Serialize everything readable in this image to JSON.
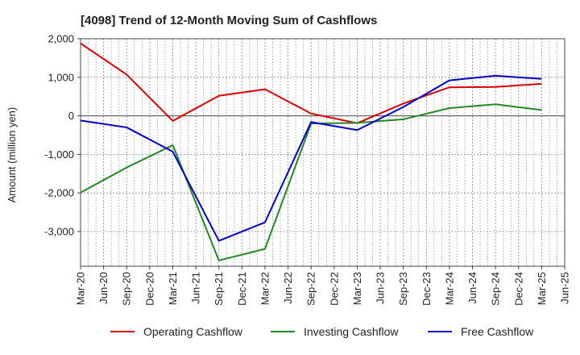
{
  "chart_data": {
    "type": "line",
    "title": "[4098]  Trend of 12-Month Moving Sum of Cashflows",
    "ylabel": "Amount (million yen)",
    "xlabel": "",
    "ylim": [
      -3900,
      2000
    ],
    "yticks": [
      2000,
      1000,
      0,
      -1000,
      -2000,
      -3000
    ],
    "ytick_labels": [
      "2,000",
      "1,000",
      "0",
      "-1,000",
      "-2,000",
      "-3,000"
    ],
    "x_ticks": [
      "Mar-20",
      "Jun-20",
      "Sep-20",
      "Dec-20",
      "Mar-21",
      "Jun-21",
      "Sep-21",
      "Dec-21",
      "Mar-22",
      "Jun-22",
      "Sep-22",
      "Dec-22",
      "Mar-23",
      "Jun-23",
      "Sep-23",
      "Dec-23",
      "Mar-24",
      "Jun-24",
      "Sep-24",
      "Dec-24",
      "Mar-25",
      "Jun-25"
    ],
    "grid": true,
    "legend_position": "bottom",
    "series": [
      {
        "name": "Operating Cashflow",
        "color": "#dd0000",
        "x": [
          "Mar-20",
          "Sep-20",
          "Mar-21",
          "Sep-21",
          "Mar-22",
          "Sep-22",
          "Mar-23",
          "Sep-23",
          "Mar-24",
          "Sep-24",
          "Mar-25"
        ],
        "values": [
          1880,
          1070,
          -130,
          520,
          690,
          60,
          -190,
          320,
          740,
          750,
          830
        ]
      },
      {
        "name": "Investing Cashflow",
        "color": "#228822",
        "x": [
          "Mar-20",
          "Sep-20",
          "Mar-21",
          "Sep-21",
          "Mar-22",
          "Sep-22",
          "Mar-23",
          "Sep-23",
          "Mar-24",
          "Sep-24",
          "Mar-25"
        ],
        "values": [
          -1990,
          -1340,
          -760,
          -3750,
          -3450,
          -200,
          -180,
          -90,
          200,
          300,
          150
        ]
      },
      {
        "name": "Free Cashflow",
        "color": "#0000cc",
        "x": [
          "Mar-20",
          "Sep-20",
          "Mar-21",
          "Sep-21",
          "Mar-22",
          "Sep-22",
          "Mar-23",
          "Sep-23",
          "Mar-24",
          "Sep-24",
          "Mar-25"
        ],
        "values": [
          -120,
          -300,
          -930,
          -3240,
          -2760,
          -160,
          -370,
          230,
          920,
          1040,
          960
        ]
      }
    ]
  }
}
